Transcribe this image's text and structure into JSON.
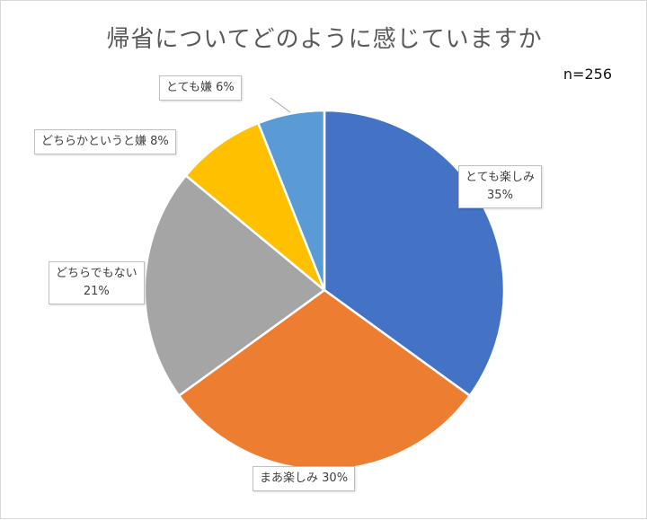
{
  "chart_data": {
    "type": "pie",
    "title": "帰省についてどのように感じていますか",
    "note": "n=256",
    "slices": [
      {
        "label": "とても楽しみ",
        "value": 35,
        "value_label": "35%",
        "color": "#4472C4"
      },
      {
        "label": "まあ楽しみ",
        "value": 30,
        "value_label": "30%",
        "color": "#ED7D31"
      },
      {
        "label": "どちらでもない",
        "value": 21,
        "value_label": "21%",
        "color": "#A5A5A5"
      },
      {
        "label": "どちらかというと嫌",
        "value": 8,
        "value_label": "8%",
        "color": "#FFC000"
      },
      {
        "label": "とても嫌",
        "value": 6,
        "value_label": "6%",
        "color": "#5B9BD5"
      }
    ],
    "legend": "none"
  }
}
